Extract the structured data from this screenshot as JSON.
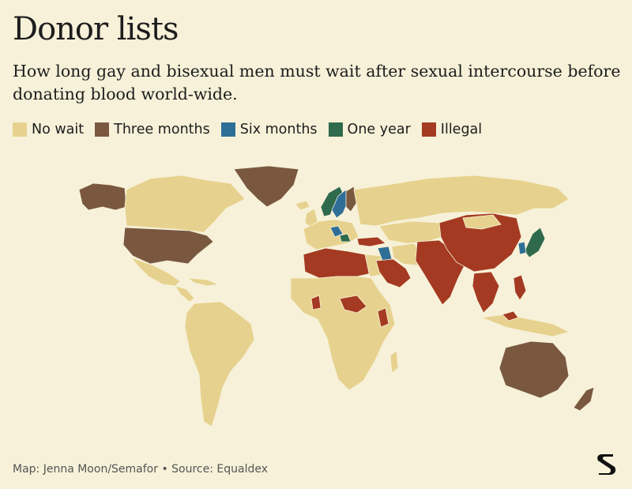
{
  "header": {
    "title": "Donor lists",
    "subtitle": "How long gay and bisexual men must wait after sexual intercourse before donating blood world-wide."
  },
  "legend": [
    {
      "label": "No wait",
      "color": "#e6d28e"
    },
    {
      "label": "Three months",
      "color": "#7a5840"
    },
    {
      "label": "Six months",
      "color": "#2f6f97"
    },
    {
      "label": "One year",
      "color": "#2f6a4c"
    },
    {
      "label": "Illegal",
      "color": "#a53a22"
    }
  ],
  "map": {
    "colors": {
      "no_wait": "#e6d28e",
      "three_months": "#7a5840",
      "six_months": "#2f6f97",
      "one_year": "#2f6a4c",
      "illegal": "#a53a22",
      "border": "#f7f1d9"
    }
  },
  "footer": {
    "credit": "Map: Jenna Moon/Semafor • Source: Equaldex",
    "logo_letter": "S"
  }
}
